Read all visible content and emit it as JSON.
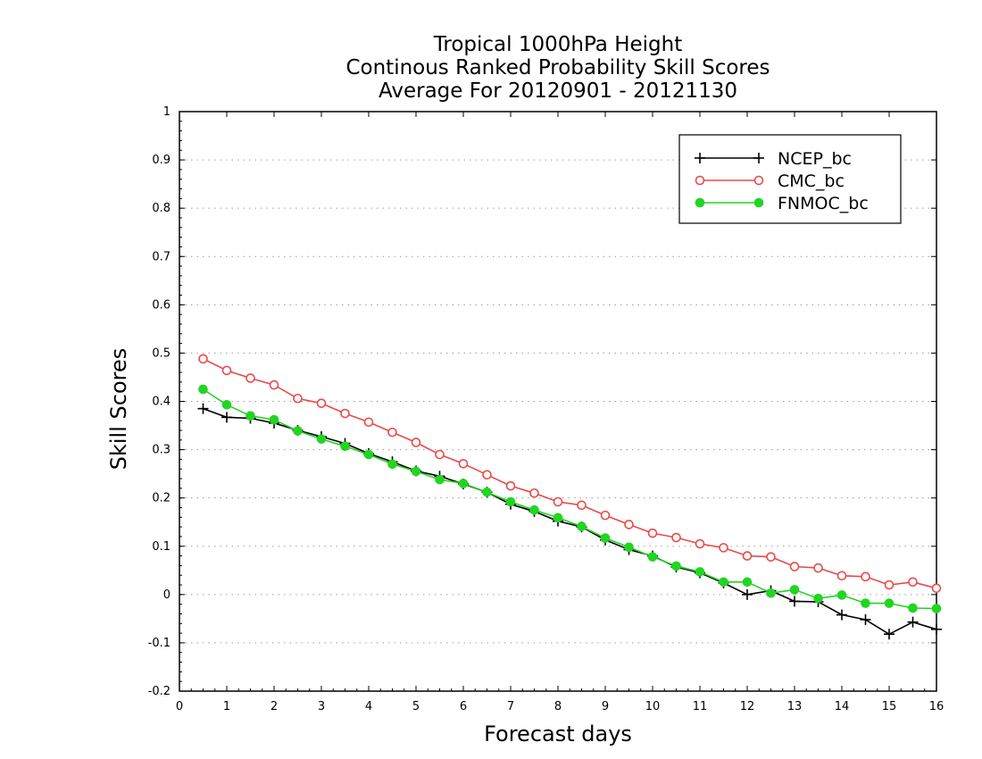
{
  "chart_data": {
    "type": "line",
    "title": [
      "Tropical 1000hPa Height",
      "Continous Ranked Probability Skill Scores",
      "Average For 20120901 - 20121130"
    ],
    "xlabel": "Forecast days",
    "ylabel": "Skill Scores",
    "xlim": [
      0,
      16
    ],
    "ylim": [
      -0.2,
      1
    ],
    "xticks": [
      "0",
      "1",
      "2",
      "3",
      "4",
      "5",
      "6",
      "7",
      "8",
      "9",
      "10",
      "11",
      "12",
      "13",
      "14",
      "15",
      "16"
    ],
    "yticks": [
      "-0.2",
      "-0.1",
      "0",
      "0.1",
      "0.2",
      "0.3",
      "0.4",
      "0.5",
      "0.6",
      "0.7",
      "0.8",
      "0.9",
      "1"
    ],
    "grid": "horizontal dotted",
    "legend_position": "top-right",
    "x": [
      0.5,
      1,
      1.5,
      2,
      2.5,
      3,
      3.5,
      4,
      4.5,
      5,
      5.5,
      6,
      6.5,
      7,
      7.5,
      8,
      8.5,
      9,
      9.5,
      10,
      10.5,
      11,
      11.5,
      12,
      12.5,
      13,
      13.5,
      14,
      14.5,
      15,
      15.5,
      16
    ],
    "series": [
      {
        "name": "NCEP_bc",
        "color": "#000000",
        "marker": "plus",
        "values": [
          0.385,
          0.367,
          0.365,
          0.355,
          0.34,
          0.327,
          0.313,
          0.292,
          0.275,
          0.256,
          0.245,
          0.229,
          0.212,
          0.187,
          0.172,
          0.152,
          0.14,
          0.113,
          0.093,
          0.08,
          0.057,
          0.045,
          0.024,
          0.0,
          0.008,
          -0.014,
          -0.015,
          -0.042,
          -0.052,
          -0.082,
          -0.057,
          -0.072
        ]
      },
      {
        "name": "CMC_bc",
        "color": "#e84a4a",
        "marker": "open-circle",
        "values": [
          0.488,
          0.464,
          0.448,
          0.434,
          0.406,
          0.396,
          0.375,
          0.357,
          0.336,
          0.315,
          0.29,
          0.271,
          0.248,
          0.225,
          0.21,
          0.192,
          0.185,
          0.164,
          0.145,
          0.127,
          0.118,
          0.105,
          0.097,
          0.08,
          0.078,
          0.058,
          0.055,
          0.039,
          0.037,
          0.02,
          0.026,
          0.013
        ]
      },
      {
        "name": "FNMOC_bc",
        "color": "#22d522",
        "marker": "filled-circle",
        "values": [
          0.425,
          0.393,
          0.37,
          0.362,
          0.339,
          0.322,
          0.307,
          0.29,
          0.27,
          0.255,
          0.238,
          0.23,
          0.212,
          0.192,
          0.175,
          0.159,
          0.141,
          0.117,
          0.098,
          0.078,
          0.059,
          0.047,
          0.026,
          0.026,
          0.003,
          0.01,
          -0.008,
          -0.001,
          -0.018,
          -0.018,
          -0.028,
          -0.029
        ]
      }
    ]
  }
}
